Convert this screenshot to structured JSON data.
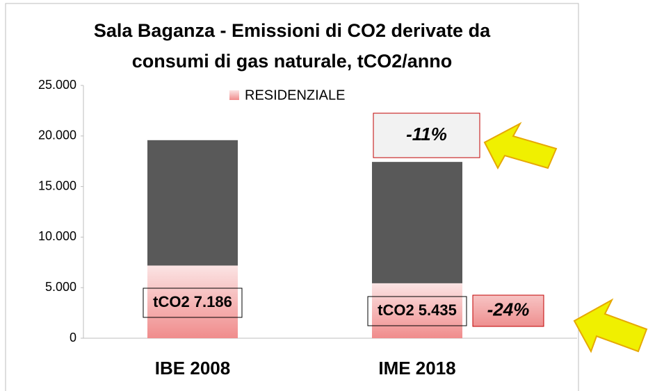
{
  "chart_data": {
    "type": "stacked_bar",
    "title": "Sala Baganza - Emissioni di CO2 derivate da consumi di gas naturale, tCO2/anno",
    "categories": [
      "IBE 2008",
      "IME 2018"
    ],
    "series": [
      {
        "name": "RESIDENZIALE",
        "color": "#f08c8c",
        "values": [
          7186,
          5435
        ],
        "value_labels": [
          "tCO2 7.186",
          "tCO2 5.435"
        ]
      },
      {
        "color": "#595959",
        "values": [
          12400,
          12000
        ]
      }
    ],
    "ylim": [
      0,
      25000
    ],
    "yticks": [
      0,
      {
        "value": 5000,
        "label": "5.000"
      },
      {
        "value": 10000,
        "label": "10.000"
      },
      {
        "value": 15000,
        "label": "15.000"
      },
      {
        "value": 20000,
        "label": "20.000"
      },
      {
        "value": 25000,
        "label": "25.000"
      }
    ],
    "annotations": [
      "-11%",
      "-24%"
    ],
    "legend": "top"
  }
}
